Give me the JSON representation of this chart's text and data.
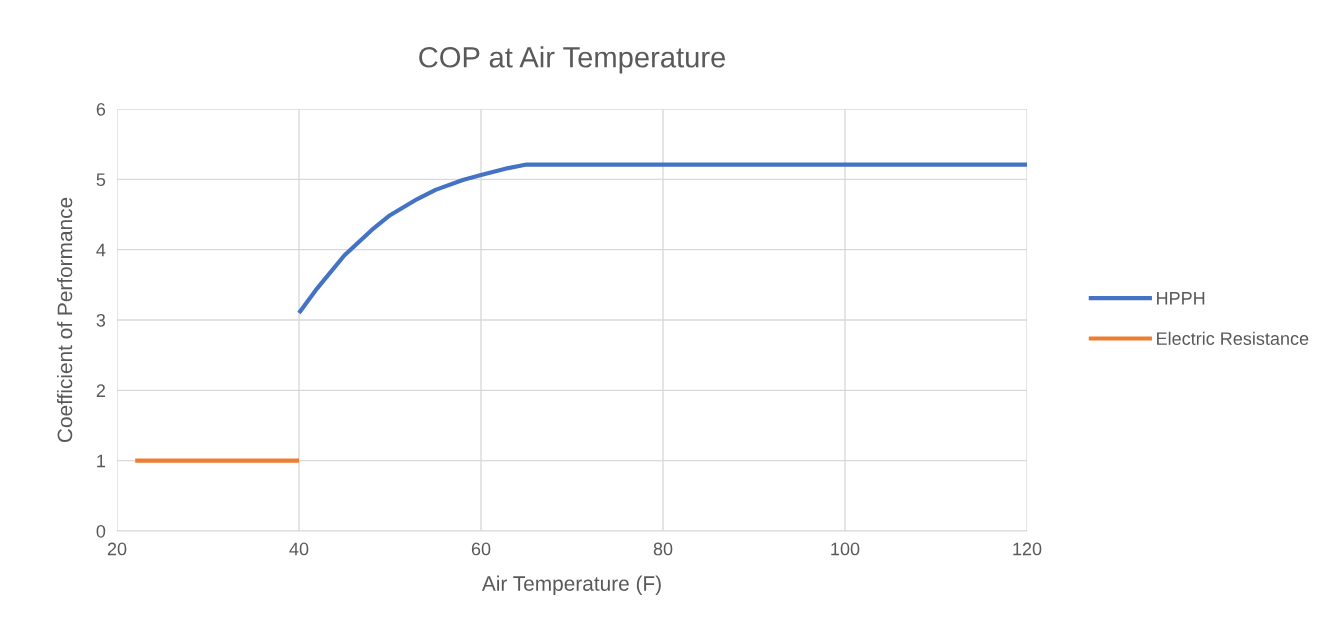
{
  "chart_data": {
    "type": "line",
    "title": "COP at Air Temperature",
    "xlabel": "Air Temperature (F)",
    "ylabel": "Coefficient of Performance",
    "series": [
      {
        "name": "HPPH",
        "color": "#4472c4",
        "x": [
          40,
          42,
          45,
          48,
          50,
          53,
          55,
          58,
          60,
          63,
          65,
          120
        ],
        "values": [
          3.1,
          3.45,
          3.92,
          4.28,
          4.49,
          4.72,
          4.85,
          4.99,
          5.06,
          5.16,
          5.21,
          5.21
        ]
      },
      {
        "name": "Electric Resistance",
        "color": "#ed7d31",
        "x": [
          22,
          40
        ],
        "values": [
          1,
          1
        ]
      }
    ],
    "xlim": [
      20,
      120
    ],
    "xticks": [
      20,
      40,
      60,
      80,
      100,
      120
    ],
    "ylim": [
      0,
      6
    ],
    "yticks": [
      0,
      1,
      2,
      3,
      4,
      5,
      6
    ],
    "grid": true,
    "legend": "right",
    "marker": "none",
    "line_style": "solid"
  }
}
